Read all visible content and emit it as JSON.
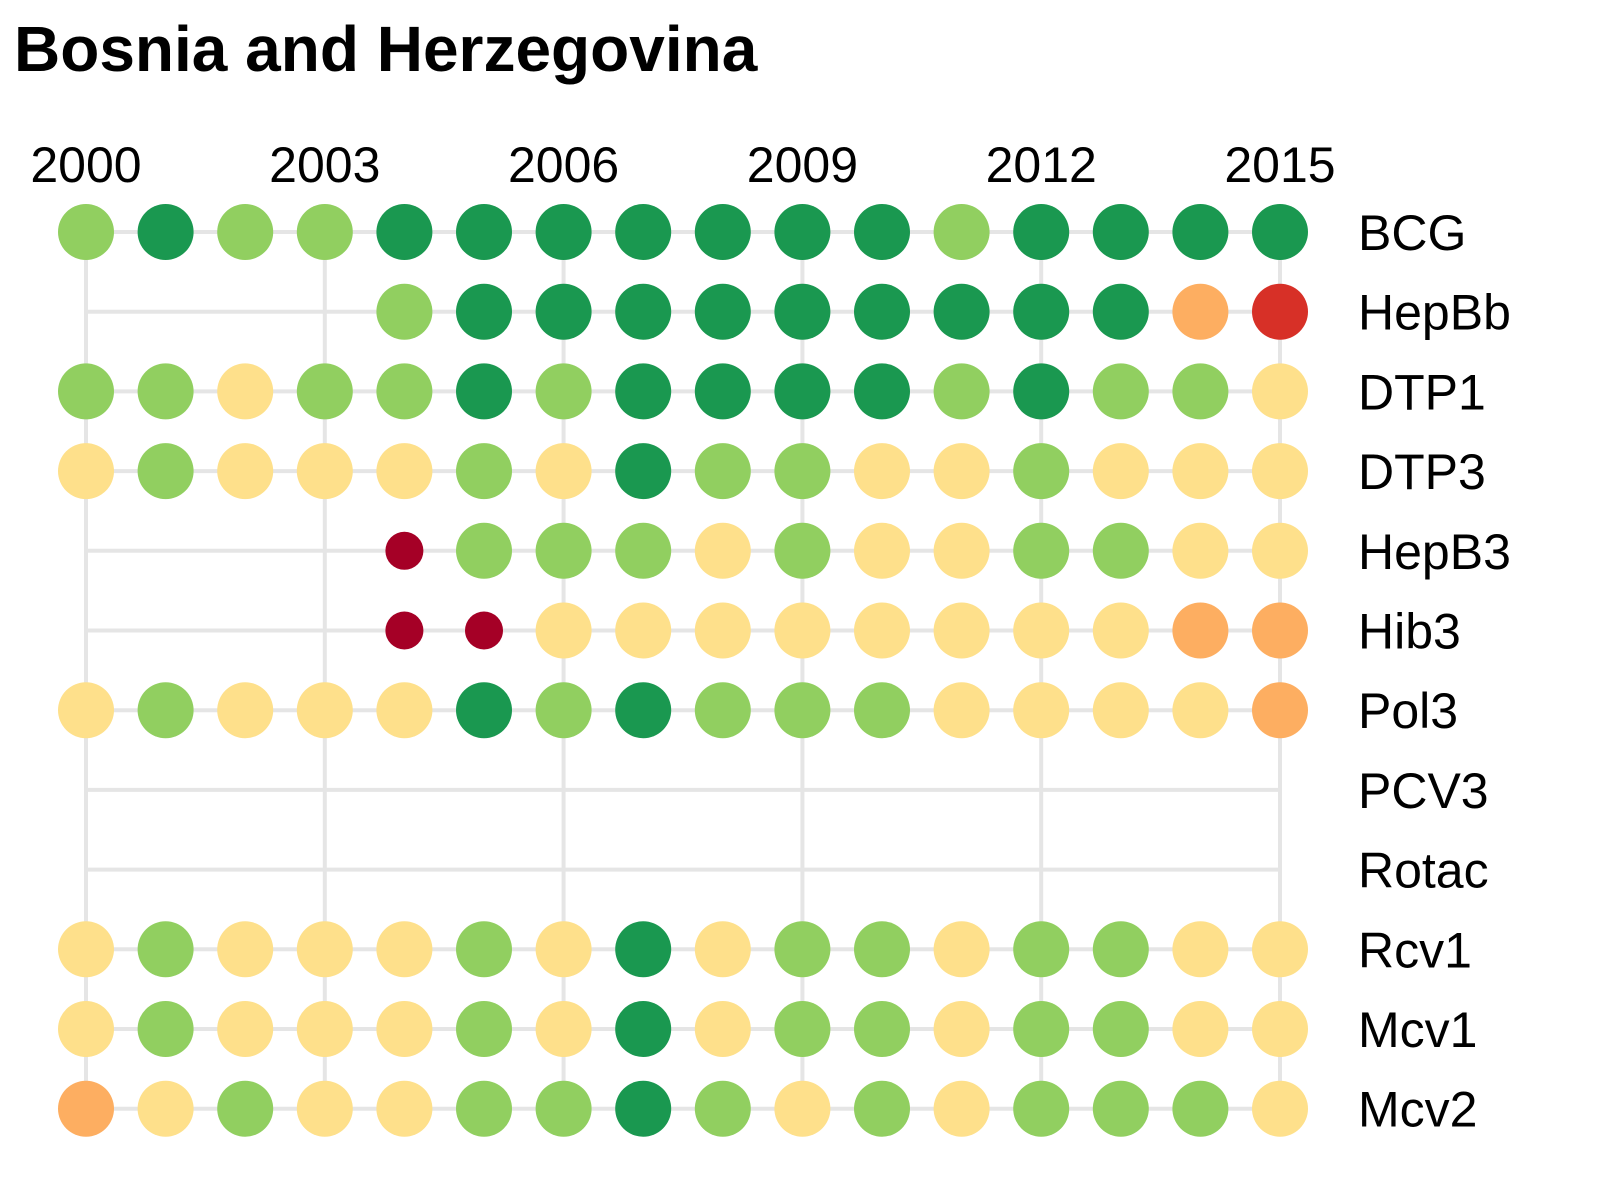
{
  "chart_data": {
    "type": "dot-matrix",
    "title": "Bosnia and Herzegovina",
    "x": [
      2000,
      2001,
      2002,
      2003,
      2004,
      2005,
      2006,
      2007,
      2008,
      2009,
      2010,
      2011,
      2012,
      2013,
      2014,
      2015
    ],
    "x_tick_labels": [
      "2000",
      "2003",
      "2006",
      "2009",
      "2012",
      "2015"
    ],
    "rows": [
      "BCG",
      "HepBb",
      "DTP1",
      "DTP3",
      "HepB3",
      "Hib3",
      "Pol3",
      "PCV3",
      "Rotac",
      "Rcv1",
      "Mcv1",
      "Mcv2"
    ],
    "colors": {
      "dark_green": "#1a9850",
      "light_green": "#91cf60",
      "yellow": "#fee08b",
      "orange": "#fdae61",
      "red": "#d73027",
      "dark_red": "#a50026",
      "grid": "#e5e5e5"
    },
    "cells": {
      "BCG": [
        "light_green",
        "dark_green",
        "light_green",
        "light_green",
        "dark_green",
        "dark_green",
        "dark_green",
        "dark_green",
        "dark_green",
        "dark_green",
        "dark_green",
        "light_green",
        "dark_green",
        "dark_green",
        "dark_green",
        "dark_green"
      ],
      "HepBb": [
        null,
        null,
        null,
        null,
        "light_green",
        "dark_green",
        "dark_green",
        "dark_green",
        "dark_green",
        "dark_green",
        "dark_green",
        "dark_green",
        "dark_green",
        "dark_green",
        "orange",
        "red"
      ],
      "DTP1": [
        "light_green",
        "light_green",
        "yellow",
        "light_green",
        "light_green",
        "dark_green",
        "light_green",
        "dark_green",
        "dark_green",
        "dark_green",
        "dark_green",
        "light_green",
        "dark_green",
        "light_green",
        "light_green",
        "yellow"
      ],
      "DTP3": [
        "yellow",
        "light_green",
        "yellow",
        "yellow",
        "yellow",
        "light_green",
        "yellow",
        "dark_green",
        "light_green",
        "light_green",
        "yellow",
        "yellow",
        "light_green",
        "yellow",
        "yellow",
        "yellow"
      ],
      "HepB3": [
        null,
        null,
        null,
        null,
        "dark_red",
        "light_green",
        "light_green",
        "light_green",
        "yellow",
        "light_green",
        "yellow",
        "yellow",
        "light_green",
        "light_green",
        "yellow",
        "yellow"
      ],
      "Hib3": [
        null,
        null,
        null,
        null,
        "dark_red",
        "dark_red",
        "yellow",
        "yellow",
        "yellow",
        "yellow",
        "yellow",
        "yellow",
        "yellow",
        "yellow",
        "orange",
        "orange"
      ],
      "Pol3": [
        "yellow",
        "light_green",
        "yellow",
        "yellow",
        "yellow",
        "dark_green",
        "light_green",
        "dark_green",
        "light_green",
        "light_green",
        "light_green",
        "yellow",
        "yellow",
        "yellow",
        "yellow",
        "orange"
      ],
      "PCV3": [
        null,
        null,
        null,
        null,
        null,
        null,
        null,
        null,
        null,
        null,
        null,
        null,
        null,
        null,
        null,
        null
      ],
      "Rotac": [
        null,
        null,
        null,
        null,
        null,
        null,
        null,
        null,
        null,
        null,
        null,
        null,
        null,
        null,
        null,
        null
      ],
      "Rcv1": [
        "yellow",
        "light_green",
        "yellow",
        "yellow",
        "yellow",
        "light_green",
        "yellow",
        "dark_green",
        "yellow",
        "light_green",
        "light_green",
        "yellow",
        "light_green",
        "light_green",
        "yellow",
        "yellow"
      ],
      "Mcv1": [
        "yellow",
        "light_green",
        "yellow",
        "yellow",
        "yellow",
        "light_green",
        "yellow",
        "dark_green",
        "yellow",
        "light_green",
        "light_green",
        "yellow",
        "light_green",
        "light_green",
        "yellow",
        "yellow"
      ],
      "Mcv2": [
        "orange",
        "yellow",
        "light_green",
        "yellow",
        "yellow",
        "light_green",
        "light_green",
        "dark_green",
        "light_green",
        "yellow",
        "light_green",
        "yellow",
        "light_green",
        "light_green",
        "light_green",
        "yellow"
      ]
    },
    "small_dot_colors": [
      "dark_red"
    ],
    "grid": true
  }
}
